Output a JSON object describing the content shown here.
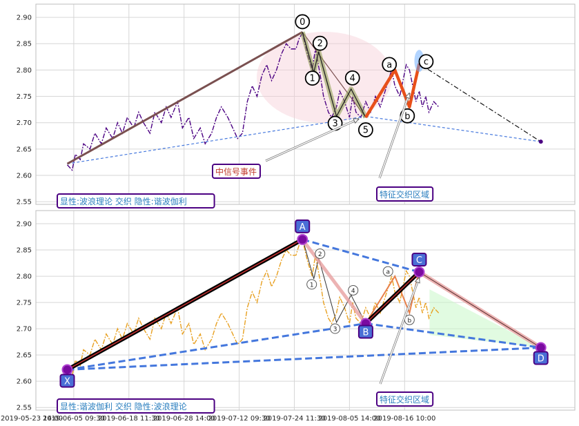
{
  "chart_data": [
    {
      "type": "line",
      "panel": "top",
      "ylim": [
        2.545,
        2.925
      ],
      "yticks": [
        "2.55",
        "2.60",
        "2.65",
        "2.70",
        "2.75",
        "2.80",
        "2.85",
        "2.90"
      ],
      "ytick_values": [
        2.55,
        2.6,
        2.65,
        2.7,
        2.75,
        2.8,
        2.85,
        2.9
      ],
      "price_color": "#4b0082",
      "price_series": [
        [
          0,
          2.62
        ],
        [
          3,
          2.61
        ],
        [
          5,
          2.64
        ],
        [
          8,
          2.63
        ],
        [
          10,
          2.66
        ],
        [
          14,
          2.65
        ],
        [
          17,
          2.68
        ],
        [
          21,
          2.66
        ],
        [
          24,
          2.69
        ],
        [
          28,
          2.67
        ],
        [
          31,
          2.7
        ],
        [
          34,
          2.68
        ],
        [
          37,
          2.71
        ],
        [
          41,
          2.69
        ],
        [
          44,
          2.72
        ],
        [
          47,
          2.7
        ],
        [
          51,
          2.68
        ],
        [
          54,
          2.72
        ],
        [
          58,
          2.7
        ],
        [
          61,
          2.73
        ],
        [
          64,
          2.71
        ],
        [
          68,
          2.74
        ],
        [
          71,
          2.69
        ],
        [
          75,
          2.71
        ],
        [
          78,
          2.67
        ],
        [
          82,
          2.69
        ],
        [
          85,
          2.66
        ],
        [
          89,
          2.68
        ],
        [
          92,
          2.71
        ],
        [
          95,
          2.73
        ],
        [
          99,
          2.71
        ],
        [
          102,
          2.69
        ],
        [
          105,
          2.67
        ],
        [
          108,
          2.68
        ],
        [
          111,
          2.74
        ],
        [
          114,
          2.77
        ],
        [
          117,
          2.75
        ],
        [
          120,
          2.79
        ],
        [
          123,
          2.81
        ],
        [
          126,
          2.78
        ],
        [
          129,
          2.8
        ],
        [
          132,
          2.83
        ],
        [
          135,
          2.85
        ],
        [
          138,
          2.84
        ],
        [
          141,
          2.84
        ],
        [
          143,
          2.86
        ],
        [
          145,
          2.87
        ],
        [
          148,
          2.83
        ],
        [
          151,
          2.8
        ],
        [
          153,
          2.84
        ],
        [
          156,
          2.79
        ],
        [
          158,
          2.75
        ],
        [
          161,
          2.72
        ],
        [
          163,
          2.71
        ],
        [
          166,
          2.73
        ],
        [
          168,
          2.76
        ],
        [
          171,
          2.74
        ],
        [
          174,
          2.71
        ],
        [
          176,
          2.75
        ],
        [
          178,
          2.72
        ],
        [
          181,
          2.71
        ],
        [
          184,
          2.74
        ],
        [
          187,
          2.72
        ],
        [
          190,
          2.75
        ],
        [
          193,
          2.73
        ],
        [
          196,
          2.76
        ],
        [
          198,
          2.78
        ],
        [
          200,
          2.8
        ],
        [
          202,
          2.77
        ],
        [
          205,
          2.75
        ],
        [
          207,
          2.78
        ],
        [
          209,
          2.81
        ],
        [
          211,
          2.8
        ],
        [
          213,
          2.77
        ],
        [
          215,
          2.74
        ],
        [
          217,
          2.76
        ],
        [
          219,
          2.73
        ],
        [
          221,
          2.75
        ],
        [
          223,
          2.72
        ],
        [
          226,
          2.74
        ],
        [
          229,
          2.73
        ]
      ],
      "wave_points": [
        {
          "label": "0",
          "x": 145,
          "y": 2.872
        },
        {
          "label": "1",
          "x": 152,
          "y": 2.795
        },
        {
          "label": "2",
          "x": 155,
          "y": 2.835
        },
        {
          "label": "3",
          "x": 166,
          "y": 2.712
        },
        {
          "label": "4",
          "x": 175,
          "y": 2.764
        },
        {
          "label": "5",
          "x": 184,
          "y": 2.71
        },
        {
          "label": "a",
          "x": 202,
          "y": 2.8
        },
        {
          "label": "b",
          "x": 211,
          "y": 2.73
        },
        {
          "label": "c",
          "x": 217,
          "y": 2.812
        }
      ],
      "end_point": {
        "x": 292,
        "y": 2.664
      },
      "annotations": [
        {
          "text": "中信号事件"
        },
        {
          "text": "特征交织区域"
        },
        {
          "text": "显性:波浪理论 交织 隐性:谐波伽利"
        }
      ]
    },
    {
      "type": "line",
      "panel": "bottom",
      "ylim": [
        2.545,
        2.925
      ],
      "yticks": [
        "2.55",
        "2.60",
        "2.65",
        "2.70",
        "2.75",
        "2.80",
        "2.85",
        "2.90"
      ],
      "ytick_values": [
        2.55,
        2.6,
        2.65,
        2.7,
        2.75,
        2.8,
        2.85,
        2.9
      ],
      "price_color": "#e8a020",
      "harmonic_points": [
        {
          "label": "X",
          "x": 0,
          "y": 2.622
        },
        {
          "label": "A",
          "x": 145,
          "y": 2.87
        },
        {
          "label": "B",
          "x": 184,
          "y": 2.71
        },
        {
          "label": "C",
          "x": 217,
          "y": 2.808
        },
        {
          "label": "D",
          "x": 292,
          "y": 2.664
        }
      ],
      "wave_labels": [
        "1",
        "2",
        "3",
        "4",
        "a",
        "b"
      ],
      "annotations": [
        {
          "text": "特征交织区域"
        },
        {
          "text": "显性:谐波伽利 交织 隐性:波浪理论"
        }
      ]
    }
  ],
  "xaxis": {
    "xlim": [
      0,
      297
    ],
    "ticks": [
      {
        "label": "2019-05-23 14:00",
        "x": -30
      },
      {
        "label": "2019-06-05 09:30",
        "x": 4
      },
      {
        "label": "2019-06-18 11:30",
        "x": 38
      },
      {
        "label": "2019-06-28 14:00",
        "x": 72
      },
      {
        "label": "2019-07-12 09:30",
        "x": 106
      },
      {
        "label": "2019-07-24 11:30",
        "x": 140
      },
      {
        "label": "2019-08-05 14:00",
        "x": 174
      },
      {
        "label": "2019-08-16 10:00",
        "x": 208
      }
    ]
  },
  "colors": {
    "wave_main": "#7a5050",
    "wave_shade": "#8a9a4a",
    "harmonic_line": "#4477dd",
    "x_a_line": "#000000",
    "x_a_inner": "#cc3333",
    "marker_fill": "#7a0aa0",
    "label_box": "#4a6fd6",
    "label_border": "#4b0082",
    "c_highlight": "#66aaff",
    "pink_region": "#f6cfd6",
    "green_region": "#c9f7c9",
    "orange_wave": "#e8501a"
  }
}
